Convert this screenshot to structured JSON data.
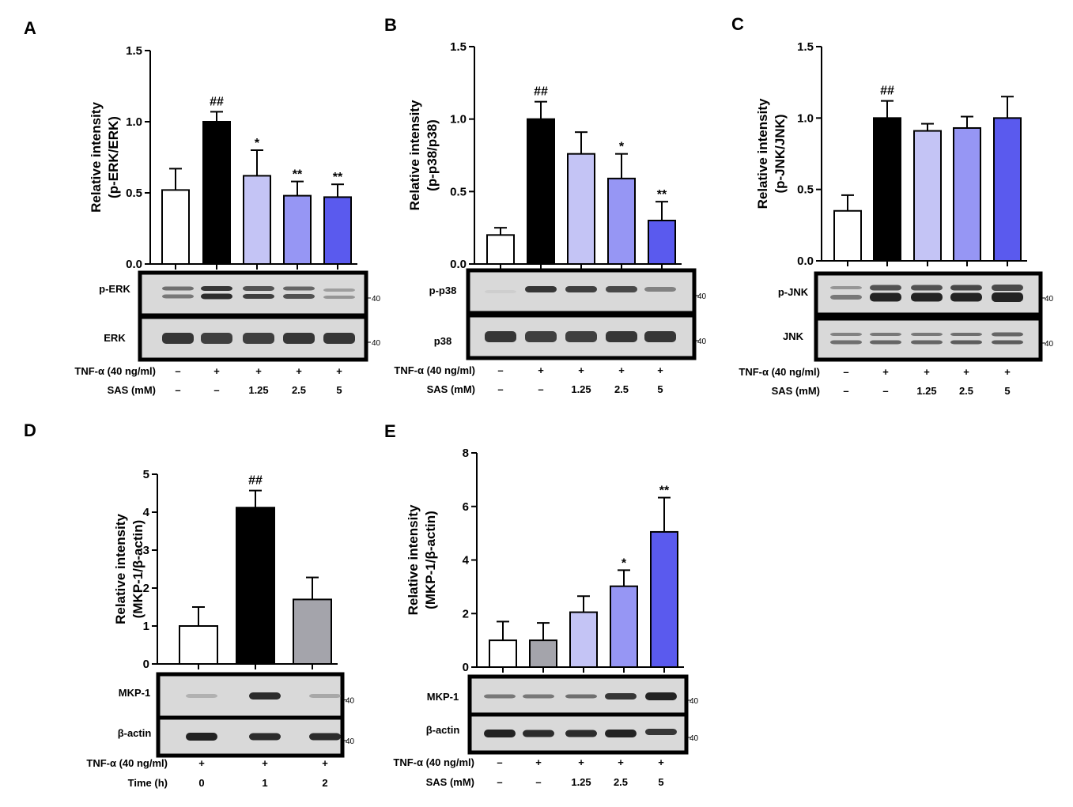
{
  "colors": {
    "white": "#ffffff",
    "black": "#000000",
    "gray": "#a4a4ab",
    "light": "#c4c4f5",
    "mid": "#9696f4",
    "deep": "#5a5aee"
  },
  "chart_data": [
    {
      "type": "bar",
      "panel": "A",
      "ylabel": [
        "Relative intensity",
        "(p-ERK/ERK)"
      ],
      "ylim": [
        0,
        1.5
      ],
      "yticks": [
        "0.0",
        "0.5",
        "1.0",
        "1.5"
      ],
      "values": [
        0.52,
        1.0,
        0.62,
        0.48,
        0.47
      ],
      "errors": [
        0.15,
        0.07,
        0.18,
        0.1,
        0.09
      ],
      "colors": [
        "white",
        "black",
        "light",
        "mid",
        "deep"
      ],
      "annotations": [
        "",
        "##",
        "*",
        "**",
        "**"
      ],
      "blots": [
        {
          "label": "p-ERK",
          "marker": "40",
          "style": "erk"
        },
        {
          "label": "ERK",
          "marker": "40",
          "style": "total"
        }
      ],
      "conditions": [
        {
          "label": "TNF-α (40 ng/ml)",
          "values": [
            "–",
            "+",
            "+",
            "+",
            "+"
          ]
        },
        {
          "label": "SAS (mM)",
          "values": [
            "–",
            "–",
            "1.25",
            "2.5",
            "5"
          ]
        }
      ]
    },
    {
      "type": "bar",
      "panel": "B",
      "ylabel": [
        "Relative intensity",
        "(p-p38/p38)"
      ],
      "ylim": [
        0,
        1.5
      ],
      "yticks": [
        "0.0",
        "0.5",
        "1.0",
        "1.5"
      ],
      "values": [
        0.2,
        1.0,
        0.76,
        0.59,
        0.3
      ],
      "errors": [
        0.05,
        0.12,
        0.15,
        0.17,
        0.13
      ],
      "colors": [
        "white",
        "black",
        "light",
        "mid",
        "deep"
      ],
      "annotations": [
        "",
        "##",
        "",
        "*",
        "**"
      ],
      "blots": [
        {
          "label": "p-p38",
          "marker": "40",
          "style": "p38"
        },
        {
          "label": "p38",
          "marker": "40",
          "style": "total"
        }
      ],
      "conditions": [
        {
          "label": "TNF-α (40 ng/ml)",
          "values": [
            "–",
            "+",
            "+",
            "+",
            "+"
          ]
        },
        {
          "label": "SAS (mM)",
          "values": [
            "–",
            "–",
            "1.25",
            "2.5",
            "5"
          ]
        }
      ]
    },
    {
      "type": "bar",
      "panel": "C",
      "ylabel": [
        "Relative intensity",
        "(p-JNK/JNK)"
      ],
      "ylim": [
        0,
        1.5
      ],
      "yticks": [
        "0.0",
        "0.5",
        "1.0",
        "1.5"
      ],
      "values": [
        0.35,
        1.0,
        0.91,
        0.93,
        1.0
      ],
      "errors": [
        0.11,
        0.12,
        0.05,
        0.08,
        0.15
      ],
      "colors": [
        "white",
        "black",
        "light",
        "mid",
        "deep"
      ],
      "annotations": [
        "",
        "##",
        "",
        "",
        ""
      ],
      "blots": [
        {
          "label": "p-JNK",
          "marker": "40",
          "style": "jnk"
        },
        {
          "label": "JNK",
          "marker": "40",
          "style": "jnktotal"
        }
      ],
      "conditions": [
        {
          "label": "TNF-α (40 ng/ml)",
          "values": [
            "–",
            "+",
            "+",
            "+",
            "+"
          ]
        },
        {
          "label": "SAS (mM)",
          "values": [
            "–",
            "–",
            "1.25",
            "2.5",
            "5"
          ]
        }
      ]
    },
    {
      "type": "bar",
      "panel": "D",
      "ylabel": [
        "Relative intensity",
        "(MKP-1/β-actin)"
      ],
      "ylim": [
        0,
        5
      ],
      "yticks": [
        "0",
        "1",
        "2",
        "3",
        "4",
        "5"
      ],
      "values": [
        1.0,
        4.12,
        1.7
      ],
      "errors": [
        0.5,
        0.45,
        0.58
      ],
      "colors": [
        "white",
        "black",
        "gray"
      ],
      "annotations": [
        "",
        "##",
        ""
      ],
      "blots": [
        {
          "label": "MKP-1",
          "marker": "40",
          "style": "mkpD"
        },
        {
          "label": "β-actin",
          "marker": "40",
          "style": "actin"
        }
      ],
      "conditions": [
        {
          "label": "TNF-α (40 ng/ml)",
          "values": [
            "+",
            "+",
            "+"
          ]
        },
        {
          "label": "Time (h)",
          "values": [
            "0",
            "1",
            "2"
          ]
        }
      ]
    },
    {
      "type": "bar",
      "panel": "E",
      "ylabel": [
        "Relative intensity",
        "(MKP-1/β-actin)"
      ],
      "ylim": [
        0,
        8
      ],
      "yticks": [
        "0",
        "2",
        "4",
        "6",
        "8"
      ],
      "values": [
        1.0,
        1.0,
        2.05,
        3.02,
        5.05
      ],
      "errors": [
        0.7,
        0.65,
        0.6,
        0.6,
        1.28
      ],
      "colors": [
        "white",
        "gray",
        "light",
        "mid",
        "deep"
      ],
      "annotations": [
        "",
        "",
        "",
        "*",
        "**"
      ],
      "blots": [
        {
          "label": "MKP-1",
          "marker": "40",
          "style": "mkpE"
        },
        {
          "label": "β-actin",
          "marker": "40",
          "style": "actin"
        }
      ],
      "conditions": [
        {
          "label": "TNF-α (40 ng/ml)",
          "values": [
            "–",
            "+",
            "+",
            "+",
            "+"
          ]
        },
        {
          "label": "SAS (mM)",
          "values": [
            "–",
            "–",
            "1.25",
            "2.5",
            "5"
          ]
        }
      ]
    }
  ]
}
